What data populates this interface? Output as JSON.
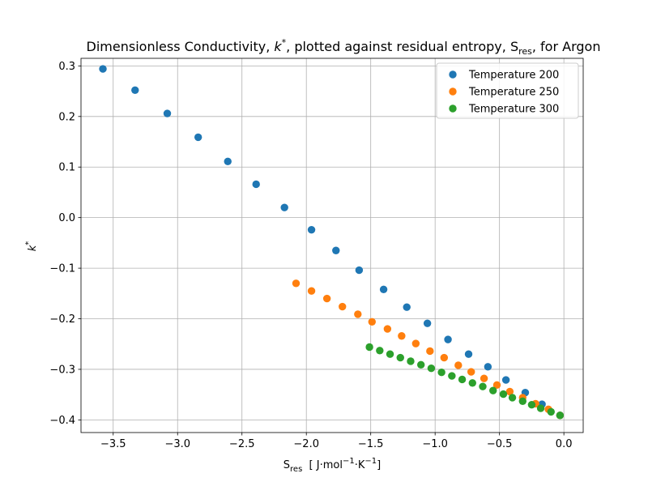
{
  "chart_data": {
    "type": "scatter",
    "title": {
      "prefix": "Dimensionless Conductivity, ",
      "k": "k",
      "k_sup": "*",
      "middle": ", plotted against residual entropy, S",
      "s_sub": "res",
      "suffix": ", for Argon"
    },
    "xlabel": {
      "s": "S",
      "s_sub": "res",
      "unit_open": "  [ J·mol",
      "sup1": "−1",
      "unit_mid": "·K",
      "sup2": "−1",
      "unit_close": "]"
    },
    "ylabel": {
      "k": "k",
      "sup": "*"
    },
    "xlim": [
      -3.75,
      0.15
    ],
    "ylim": [
      -0.425,
      0.315
    ],
    "x_ticks": [
      -3.5,
      -3.0,
      -2.5,
      -2.0,
      -1.5,
      -1.0,
      -0.5,
      0.0
    ],
    "x_tick_labels": [
      "−3.5",
      "−3.0",
      "−2.5",
      "−2.0",
      "−1.5",
      "−1.0",
      "−0.5",
      "0.0"
    ],
    "y_ticks": [
      0.3,
      0.2,
      0.1,
      0.0,
      -0.1,
      -0.2,
      -0.3,
      -0.4
    ],
    "y_tick_labels": [
      "0.3",
      "0.2",
      "0.1",
      "0.0",
      "−0.1",
      "−0.2",
      "−0.3",
      "−0.4"
    ],
    "grid": true,
    "legend_position": "top-right",
    "series": [
      {
        "name": "Temperature 200",
        "color": "#1f77b4",
        "x": [
          -3.58,
          -3.33,
          -3.08,
          -2.84,
          -2.61,
          -2.39,
          -2.17,
          -1.96,
          -1.77,
          -1.59,
          -1.4,
          -1.22,
          -1.06,
          -0.9,
          -0.74,
          -0.59,
          -0.45,
          -0.3,
          -0.17,
          -0.03
        ],
        "y": [
          0.294,
          0.252,
          0.206,
          0.159,
          0.111,
          0.066,
          0.02,
          -0.024,
          -0.065,
          -0.104,
          -0.142,
          -0.177,
          -0.209,
          -0.241,
          -0.27,
          -0.295,
          -0.321,
          -0.346,
          -0.369,
          -0.391
        ]
      },
      {
        "name": "Temperature 250",
        "color": "#ff7f0e",
        "x": [
          -2.08,
          -1.96,
          -1.84,
          -1.72,
          -1.6,
          -1.49,
          -1.37,
          -1.26,
          -1.15,
          -1.04,
          -0.93,
          -0.82,
          -0.72,
          -0.62,
          -0.52,
          -0.42,
          -0.32,
          -0.22,
          -0.12,
          -0.03
        ],
        "y": [
          -0.13,
          -0.145,
          -0.16,
          -0.176,
          -0.191,
          -0.206,
          -0.22,
          -0.234,
          -0.249,
          -0.264,
          -0.277,
          -0.292,
          -0.305,
          -0.318,
          -0.331,
          -0.344,
          -0.356,
          -0.368,
          -0.379,
          -0.391
        ]
      },
      {
        "name": "Temperature 300",
        "color": "#2ca02c",
        "x": [
          -1.51,
          -1.43,
          -1.35,
          -1.27,
          -1.19,
          -1.11,
          -1.03,
          -0.95,
          -0.87,
          -0.79,
          -0.71,
          -0.63,
          -0.55,
          -0.47,
          -0.4,
          -0.32,
          -0.25,
          -0.18,
          -0.1,
          -0.03
        ],
        "y": [
          -0.256,
          -0.263,
          -0.27,
          -0.277,
          -0.284,
          -0.291,
          -0.298,
          -0.306,
          -0.313,
          -0.32,
          -0.327,
          -0.334,
          -0.342,
          -0.349,
          -0.356,
          -0.363,
          -0.37,
          -0.377,
          -0.384,
          -0.391
        ]
      }
    ]
  }
}
